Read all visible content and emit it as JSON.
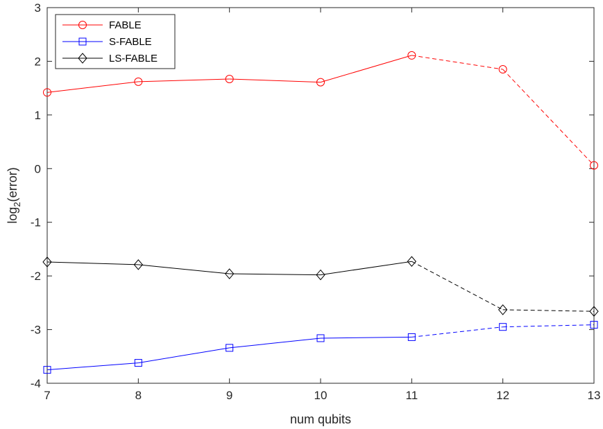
{
  "chart_data": {
    "type": "line",
    "xlabel": "num qubits",
    "ylabel": "log2(error)",
    "xlim": [
      7,
      13
    ],
    "ylim": [
      -4,
      3
    ],
    "xticks": [
      7,
      8,
      9,
      10,
      11,
      12,
      13
    ],
    "yticks": [
      -4,
      -3,
      -2,
      -1,
      0,
      1,
      2,
      3
    ],
    "grid": false,
    "legend_position": "top-left",
    "solid_until_x": 11,
    "x": [
      7,
      8,
      9,
      10,
      11,
      12,
      13
    ],
    "series": [
      {
        "name": "FABLE",
        "color": "#ff0000",
        "marker": "circle",
        "values": [
          1.42,
          1.62,
          1.67,
          1.61,
          2.11,
          1.85,
          0.06
        ]
      },
      {
        "name": "S-FABLE",
        "color": "#0000ff",
        "marker": "square",
        "values": [
          -3.75,
          -3.62,
          -3.34,
          -3.16,
          -3.14,
          -2.95,
          -2.91
        ]
      },
      {
        "name": "LS-FABLE",
        "color": "#000000",
        "marker": "diamond",
        "values": [
          -1.74,
          -1.79,
          -1.96,
          -1.98,
          -1.73,
          -2.63,
          -2.66
        ]
      }
    ]
  }
}
